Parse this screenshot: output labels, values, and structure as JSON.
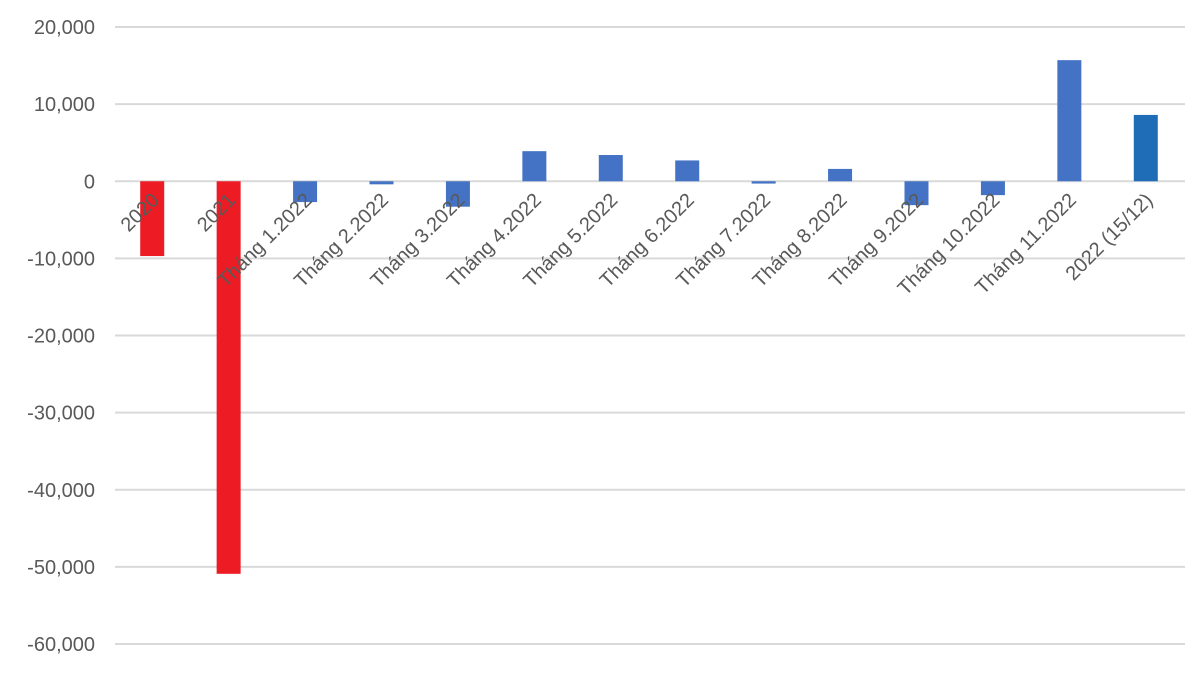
{
  "chart_data": {
    "type": "bar",
    "title": "",
    "xlabel": "",
    "ylabel": "",
    "ylim": [
      -60000,
      20000
    ],
    "yticks": [
      20000,
      10000,
      0,
      -10000,
      -20000,
      -30000,
      -40000,
      -50000,
      -60000
    ],
    "ytick_labels": [
      "20,000",
      "10,000",
      "0",
      "-10,000",
      "-20,000",
      "-30,000",
      "-40,000",
      "-50,000",
      "-60,000"
    ],
    "grid": true,
    "legend": "none",
    "categories": [
      "2020",
      "2021",
      "Tháng 1.2022",
      "Tháng 2.2022",
      "Tháng 3.2022",
      "Tháng 4.2022",
      "Tháng 5.2022",
      "Tháng 6.2022",
      "Tháng 7.2022",
      "Tháng 8.2022",
      "Tháng 9.2022",
      "Tháng 10.2022",
      "Tháng 11.2022",
      "2022 (15/12)"
    ],
    "values": [
      -9700,
      -50900,
      -2700,
      -400,
      -3300,
      3900,
      3400,
      2700,
      -300,
      1600,
      -3100,
      -1800,
      15700,
      8600
    ],
    "colors": [
      "#ED1C24",
      "#ED1C24",
      "#4472C4",
      "#4472C4",
      "#4472C4",
      "#4472C4",
      "#4472C4",
      "#4472C4",
      "#4472C4",
      "#4472C4",
      "#4472C4",
      "#4472C4",
      "#4472C4",
      "#1E6DB6"
    ]
  }
}
